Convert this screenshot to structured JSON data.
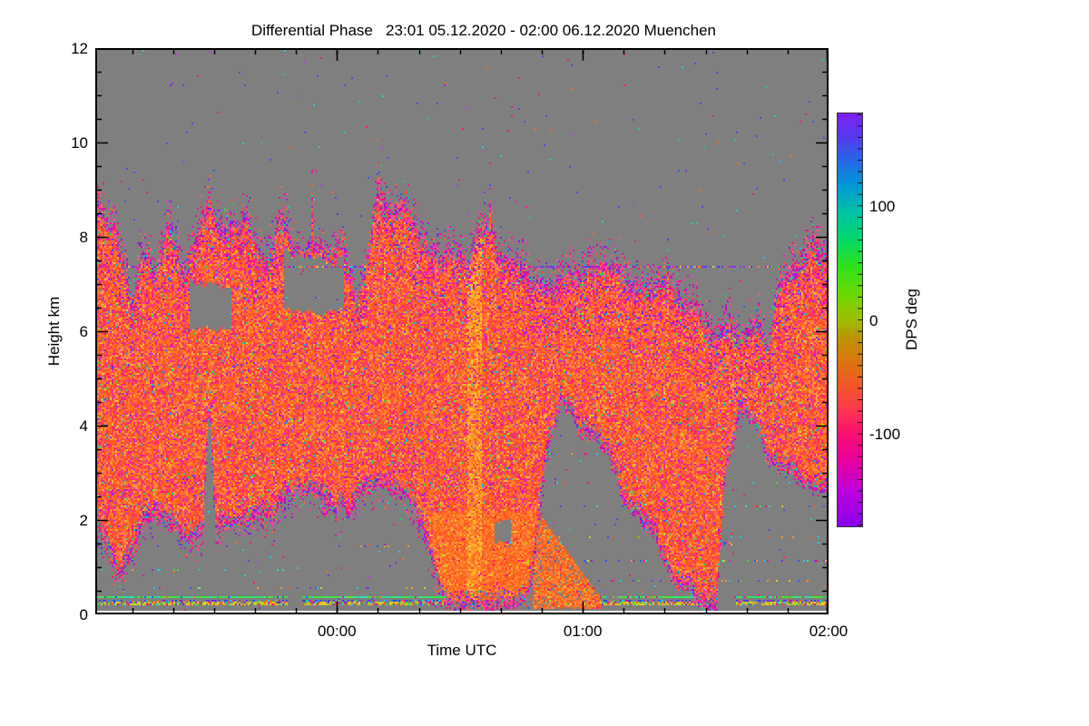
{
  "chart_data": {
    "type": "heatmap",
    "title": "Differential Phase   23:01 05.12.2020 - 02:00 06.12.2020 Muenchen",
    "xlabel": "Time UTC",
    "ylabel": "Height km",
    "x_start": "23:01 05.12.2020",
    "x_end": "02:00 06.12.2020",
    "x_total_minutes": 179,
    "x_ticks": [
      {
        "label": "00:00",
        "min": 59
      },
      {
        "label": "01:00",
        "min": 119
      },
      {
        "label": "02:00",
        "min": 179
      }
    ],
    "x_minor_every_min": 10,
    "y_range": [
      0,
      12
    ],
    "y_ticks": [
      0,
      2,
      4,
      6,
      8,
      10,
      12
    ],
    "y_minor_step": 0.5,
    "grid": false,
    "background_color": "#7f7f7f",
    "nodata_bottom_km": 0.09,
    "colorbar": {
      "label": "DPS deg",
      "ticks": [
        100,
        0,
        -100
      ],
      "range": [
        -181,
        181
      ],
      "minor_step": 10,
      "stops": [
        {
          "v": -181,
          "c": "#8A00F0"
        },
        {
          "v": -150,
          "c": "#BE00DA"
        },
        {
          "v": -125,
          "c": "#E600A0"
        },
        {
          "v": -100,
          "c": "#FA1070"
        },
        {
          "v": -78,
          "c": "#FF3A4E"
        },
        {
          "v": -58,
          "c": "#F2562A"
        },
        {
          "v": -38,
          "c": "#DD7412"
        },
        {
          "v": -16,
          "c": "#BB9404"
        },
        {
          "v": 0,
          "c": "#9FBE00"
        },
        {
          "v": 22,
          "c": "#6ED800"
        },
        {
          "v": 48,
          "c": "#2EE21E"
        },
        {
          "v": 72,
          "c": "#00D870"
        },
        {
          "v": 96,
          "c": "#00C0AA"
        },
        {
          "v": 118,
          "c": "#0098D4"
        },
        {
          "v": 142,
          "c": "#2A62E8"
        },
        {
          "v": 162,
          "c": "#5A38EE"
        },
        {
          "v": 181,
          "c": "#7A20F0"
        }
      ]
    },
    "cloud_envelope": {
      "t": [
        0.0,
        0.012,
        0.025,
        0.037,
        0.05,
        0.062,
        0.08,
        0.1,
        0.12,
        0.146,
        0.155,
        0.163,
        0.19,
        0.21,
        0.235,
        0.241,
        0.252,
        0.27,
        0.29,
        0.31,
        0.327,
        0.336,
        0.346,
        0.356,
        0.37,
        0.385,
        0.4,
        0.42,
        0.435,
        0.45,
        0.47,
        0.49,
        0.51,
        0.53,
        0.55,
        0.57,
        0.59,
        0.6,
        0.615,
        0.64,
        0.66,
        0.7,
        0.72,
        0.75,
        0.78,
        0.8,
        0.825,
        0.848,
        0.86,
        0.88,
        0.9,
        0.92,
        0.933,
        0.95,
        0.97,
        1.0
      ],
      "top_km": [
        8.9,
        8.6,
        8.1,
        7.7,
        6.9,
        8.0,
        7.2,
        8.5,
        7.1,
        8.6,
        8.8,
        8.4,
        8.4,
        8.2,
        7.4,
        7.8,
        8.5,
        7.8,
        7.9,
        8.0,
        8.1,
        8.0,
        7.6,
        6.7,
        7.4,
        9.1,
        8.6,
        8.7,
        8.5,
        8.0,
        7.9,
        7.7,
        7.6,
        8.3,
        7.8,
        7.5,
        7.35,
        7.3,
        7.2,
        7.0,
        7.3,
        7.3,
        7.2,
        7.0,
        6.9,
        6.6,
        6.7,
        5.9,
        6.2,
        5.8,
        6.3,
        6.0,
        7.2,
        7.6,
        7.9,
        7.8
      ],
      "base_km": [
        1.9,
        1.4,
        1.0,
        0.9,
        1.3,
        1.9,
        2.2,
        1.7,
        1.5,
        1.6,
        4.5,
        1.8,
        1.9,
        2.1,
        2.0,
        1.9,
        2.2,
        2.4,
        2.5,
        2.5,
        2.0,
        2.4,
        1.95,
        2.45,
        2.45,
        2.45,
        2.4,
        2.35,
        2.2,
        1.5,
        0.4,
        0.15,
        0.1,
        0.1,
        0.1,
        0.12,
        0.3,
        1.2,
        3.2,
        4.3,
        3.8,
        3.4,
        2.5,
        1.8,
        1.0,
        0.5,
        0.1,
        0.1,
        3.0,
        4.2,
        3.9,
        3.1,
        3.0,
        2.8,
        2.6,
        2.4
      ]
    },
    "holes": [
      {
        "t0": 0.258,
        "t1": 0.338,
        "h0": 6.4,
        "h1": 7.6
      },
      {
        "t0": 0.128,
        "t1": 0.186,
        "h0": 6.05,
        "h1": 7.0
      },
      {
        "t0": 0.545,
        "t1": 0.567,
        "h0": 1.5,
        "h1": 2.0
      }
    ],
    "streaks": [
      {
        "t0": 0.598,
        "t1": 0.69,
        "top0": 2.3,
        "top1": 0.35,
        "base": 0.1,
        "density": 0.85
      }
    ],
    "bright_column": {
      "t0": 0.508,
      "t1": 0.528
    },
    "rain_region": {
      "t0": 0.46,
      "t1": 0.6,
      "h_below": 2.2
    },
    "bottom_band": {
      "t0": 0.475,
      "t1": 0.585,
      "h_below": 0.23
    },
    "layer_lines": [
      {
        "name": "green-layer-0.37km",
        "h": 0.37,
        "hw": 0.026,
        "density": 0.95,
        "palette": "green_line",
        "segments": [
          [
            0.0,
            0.262
          ],
          [
            0.281,
            0.477
          ],
          [
            0.672,
            0.822
          ],
          [
            0.872,
            1.0
          ]
        ]
      },
      {
        "name": "blue-layer-0.30km",
        "h": 0.305,
        "hw": 0.02,
        "density": 0.55,
        "palette": "blue_row",
        "segments": [
          [
            0.0,
            0.262
          ],
          [
            0.281,
            0.477
          ],
          [
            0.672,
            0.822
          ],
          [
            0.872,
            1.0
          ]
        ]
      },
      {
        "name": "yellow-layer-0.24km",
        "h": 0.235,
        "hw": 0.026,
        "density": 0.75,
        "palette": "yellow_row",
        "segments": [
          [
            0.0,
            0.262
          ],
          [
            0.281,
            0.477
          ],
          [
            0.672,
            0.822
          ],
          [
            0.872,
            1.0
          ]
        ]
      },
      {
        "name": "thin-layer-7.35km",
        "h": 7.35,
        "hw": 0.022,
        "density": 0.62,
        "palette": "high_line",
        "segments": [
          [
            0.0,
            1.0
          ]
        ]
      }
    ],
    "dot_rows": [
      {
        "h": 1.5,
        "density": 0.45,
        "segments": [
          [
            0.455,
            0.64
          ],
          [
            0.79,
            0.87
          ]
        ]
      },
      {
        "h": 1.15,
        "density": 0.2,
        "segments": [
          [
            0.6,
            1.0
          ]
        ]
      },
      {
        "h": 0.7,
        "density": 0.15,
        "segments": [
          [
            0.6,
            1.0
          ]
        ]
      },
      {
        "h": 1.65,
        "density": 0.15,
        "segments": [
          [
            0.6,
            1.0
          ]
        ]
      },
      {
        "h": 2.3,
        "density": 0.12,
        "segments": [
          [
            0.62,
            1.0
          ]
        ]
      },
      {
        "h": 2.8,
        "density": 0.12,
        "segments": [
          [
            0.63,
            1.0
          ]
        ]
      },
      {
        "h": 3.4,
        "density": 0.12,
        "segments": [
          [
            0.6,
            1.0
          ]
        ]
      },
      {
        "h": 1.45,
        "density": 0.12,
        "segments": [
          [
            0.0,
            0.12
          ],
          [
            0.33,
            0.45
          ]
        ]
      },
      {
        "h": 0.95,
        "density": 0.1,
        "segments": [
          [
            0.0,
            0.28
          ]
        ]
      },
      {
        "h": 0.55,
        "density": 0.12,
        "segments": [
          [
            0.0,
            0.46
          ]
        ]
      }
    ],
    "palettes": {
      "core": [
        [
          "#FF6A1E",
          18
        ],
        [
          "#FF7B2E",
          14
        ],
        [
          "#FF5A22",
          12
        ],
        [
          "#FF8C3A",
          8
        ],
        [
          "#FF4A33",
          10
        ],
        [
          "#FA3D55",
          8
        ],
        [
          "#FF2E7A",
          9
        ],
        [
          "#F01E8C",
          6
        ],
        [
          "#E835A5",
          4
        ],
        [
          "#FF9C44",
          4
        ],
        [
          "#FFB347",
          2
        ],
        [
          "#B03CE8",
          1.5
        ],
        [
          "#7A2CE8",
          1
        ],
        [
          "#32CC55",
          0.8
        ],
        [
          "#00BBCC",
          0.7
        ],
        [
          "#CCD11E",
          1
        ]
      ],
      "edge": [
        [
          "#F0148C",
          22
        ],
        [
          "#FF3DA0",
          16
        ],
        [
          "#D414B4",
          12
        ],
        [
          "#9922E6",
          10
        ],
        [
          "#7A1EE0",
          8
        ],
        [
          "#FF5A8C",
          8
        ],
        [
          "#FF6A2E",
          10
        ],
        [
          "#FF4A40",
          6
        ],
        [
          "#2ECC66",
          3
        ],
        [
          "#00BBCC",
          2
        ],
        [
          "#3355EE",
          3
        ]
      ],
      "rain": [
        [
          "#FF6A1E",
          30
        ],
        [
          "#FF7B2E",
          25
        ],
        [
          "#FF5A22",
          15
        ],
        [
          "#FF8C3A",
          12
        ],
        [
          "#FF4A33",
          8
        ],
        [
          "#FFA028",
          6
        ],
        [
          "#F0148C",
          2
        ],
        [
          "#CCD11E",
          2
        ]
      ],
      "bright": [
        [
          "#FFA028",
          30
        ],
        [
          "#FFB838",
          20
        ],
        [
          "#FF8C1E",
          25
        ],
        [
          "#EECC22",
          10
        ],
        [
          "#FF7B2E",
          15
        ]
      ],
      "band": [
        [
          "#DDE01E",
          25
        ],
        [
          "#9CD922",
          18
        ],
        [
          "#55CC44",
          15
        ],
        [
          "#FFA028",
          15
        ],
        [
          "#FF7B2E",
          15
        ],
        [
          "#2EC9A0",
          12
        ]
      ],
      "green_line": [
        [
          "#3BE83B",
          55
        ],
        [
          "#2EE8A8",
          15
        ],
        [
          "#22CCE0",
          12
        ],
        [
          "#66E022",
          8
        ],
        [
          "#3355EE",
          4
        ],
        [
          "#FF6A2E",
          3
        ],
        [
          "#F0148C",
          3
        ]
      ],
      "blue_row": [
        [
          "#3344E0",
          30
        ],
        [
          "#6633EE",
          25
        ],
        [
          "#2288EE",
          15
        ],
        [
          "#F0148C",
          10
        ],
        [
          "#FF6A2E",
          8
        ],
        [
          "#22CCE0",
          7
        ],
        [
          "#44DD44",
          5
        ]
      ],
      "yellow_row": [
        [
          "#D9D020",
          35
        ],
        [
          "#AACC22",
          15
        ],
        [
          "#FF9C2E",
          12
        ],
        [
          "#FF5A22",
          8
        ],
        [
          "#F0148C",
          8
        ],
        [
          "#44DD44",
          8
        ],
        [
          "#22CCE0",
          6
        ],
        [
          "#7A2CE8",
          8
        ]
      ],
      "high_line": [
        [
          "#8833EE",
          25
        ],
        [
          "#B028E0",
          15
        ],
        [
          "#5533EE",
          12
        ],
        [
          "#F0148C",
          12
        ],
        [
          "#FF5A22",
          10
        ],
        [
          "#FF9C2E",
          8
        ],
        [
          "#2ECC66",
          6
        ],
        [
          "#22CCE0",
          6
        ],
        [
          "#E8D020",
          6
        ]
      ],
      "dots": [
        [
          "#22CCE0",
          20
        ],
        [
          "#3355EE",
          15
        ],
        [
          "#FF9C2E",
          12
        ],
        [
          "#FF5A22",
          10
        ],
        [
          "#44DD44",
          10
        ],
        [
          "#F0148C",
          10
        ],
        [
          "#E8D020",
          8
        ],
        [
          "#7A2CE8",
          8
        ],
        [
          "#2EE8A8",
          7
        ]
      ],
      "specks": [
        [
          "#7A2CE8",
          20
        ],
        [
          "#3355EE",
          15
        ],
        [
          "#F0148C",
          20
        ],
        [
          "#2ECC66",
          12
        ],
        [
          "#22CCE0",
          12
        ],
        [
          "#FF6A2E",
          13
        ],
        [
          "#B03CE8",
          8
        ]
      ]
    },
    "seed": 42
  }
}
